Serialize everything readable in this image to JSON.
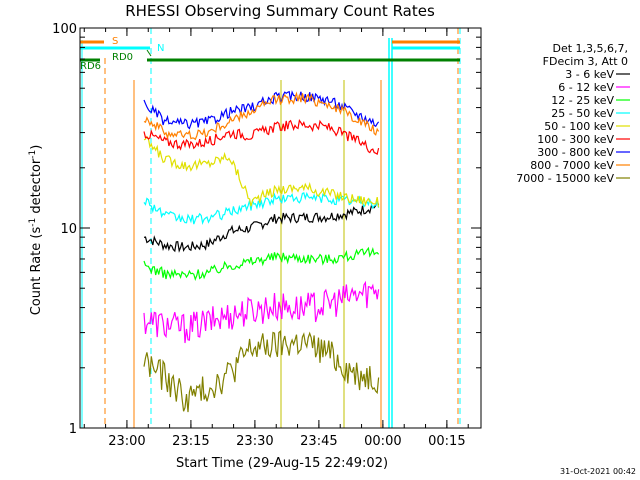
{
  "chart_data": {
    "type": "line",
    "title": "RHESSI Observing Summary Count Rates",
    "xlabel": "Start Time (29-Aug-15 22:49:02)",
    "ylabel_main": "Count Rate (s",
    "ylabel_sup1": "-1",
    "ylabel_mid": " detector",
    "ylabel_sup2": "-1",
    "ylabel_end": ")",
    "yscale": "log",
    "ylim": [
      1,
      100
    ],
    "xlim_minutes": [
      -11,
      83
    ],
    "x_ticks": [
      {
        "label": "23:00",
        "min": 0
      },
      {
        "label": "23:15",
        "min": 15
      },
      {
        "label": "23:30",
        "min": 30
      },
      {
        "label": "23:45",
        "min": 45
      },
      {
        "label": "00:00",
        "min": 60
      },
      {
        "label": "00:15",
        "min": 75
      }
    ],
    "y_ticks": [
      {
        "label": "1",
        "value": 1
      },
      {
        "label": "10",
        "value": 10
      },
      {
        "label": "100",
        "value": 100
      }
    ],
    "legend_header": [
      "Det 1,3,5,6,7,",
      "FDecim 3, Att 0"
    ],
    "series": [
      {
        "name": "3 - 6 keV",
        "color": "#000000",
        "values": [
          9.0,
          8.2,
          8.0,
          8.3,
          9.6,
          10.0,
          11.2,
          11.3,
          11.4,
          12.0,
          13.0
        ]
      },
      {
        "name": "6 - 12 keV",
        "color": "#ff00ff",
        "values": [
          3.5,
          3.3,
          3.2,
          3.4,
          3.7,
          3.9,
          4.1,
          4.0,
          4.2,
          4.6,
          5.0
        ]
      },
      {
        "name": "12 - 25 keV",
        "color": "#00ff00",
        "values": [
          6.5,
          5.9,
          5.8,
          6.0,
          6.5,
          6.8,
          7.2,
          7.1,
          7.0,
          7.3,
          7.6
        ]
      },
      {
        "name": "25 - 50 keV",
        "color": "#00ffff",
        "values": [
          14.0,
          11.5,
          11.0,
          11.2,
          12.0,
          13.0,
          14.0,
          14.2,
          14.0,
          13.6,
          13.2
        ]
      },
      {
        "name": "50 - 100 keV",
        "color": "#e0e000",
        "values": [
          28.0,
          22.0,
          20.5,
          21.0,
          23.0,
          13.5,
          15.5,
          16.0,
          15.0,
          14.0,
          13.5
        ]
      },
      {
        "name": "100 - 300 keV",
        "color": "#ff0000",
        "values": [
          30.0,
          27.0,
          26.0,
          27.0,
          30.0,
          29.0,
          32.0,
          33.0,
          32.0,
          28.0,
          24.0
        ]
      },
      {
        "name": "300 - 800 keV",
        "color": "#0000ff",
        "values": [
          42.0,
          34.0,
          33.0,
          34.0,
          38.0,
          40.0,
          45.0,
          46.0,
          44.0,
          38.0,
          33.0
        ]
      },
      {
        "name": "800 - 7000 keV",
        "color": "#ff8000",
        "values": [
          36.0,
          30.0,
          29.0,
          30.0,
          34.0,
          38.0,
          44.0,
          45.0,
          42.0,
          36.0,
          30.0
        ]
      },
      {
        "name": "7000 - 15000 keV",
        "color": "#808000",
        "values": [
          2.2,
          1.8,
          1.4,
          1.6,
          1.9,
          2.5,
          2.6,
          2.7,
          2.4,
          1.9,
          1.8
        ]
      }
    ],
    "series_x_minutes": [
      4,
      9,
      14,
      19,
      24,
      29,
      35,
      41,
      47,
      53,
      59
    ],
    "markers": [
      {
        "label": "S",
        "color": "#ff8000"
      },
      {
        "label": "N",
        "color": "#00ffff"
      },
      {
        "label": "RD0",
        "color": "#008000"
      },
      {
        "label": "RD6",
        "color": "#008000"
      }
    ],
    "timestamp": "31-Oct-2021 00:42"
  }
}
